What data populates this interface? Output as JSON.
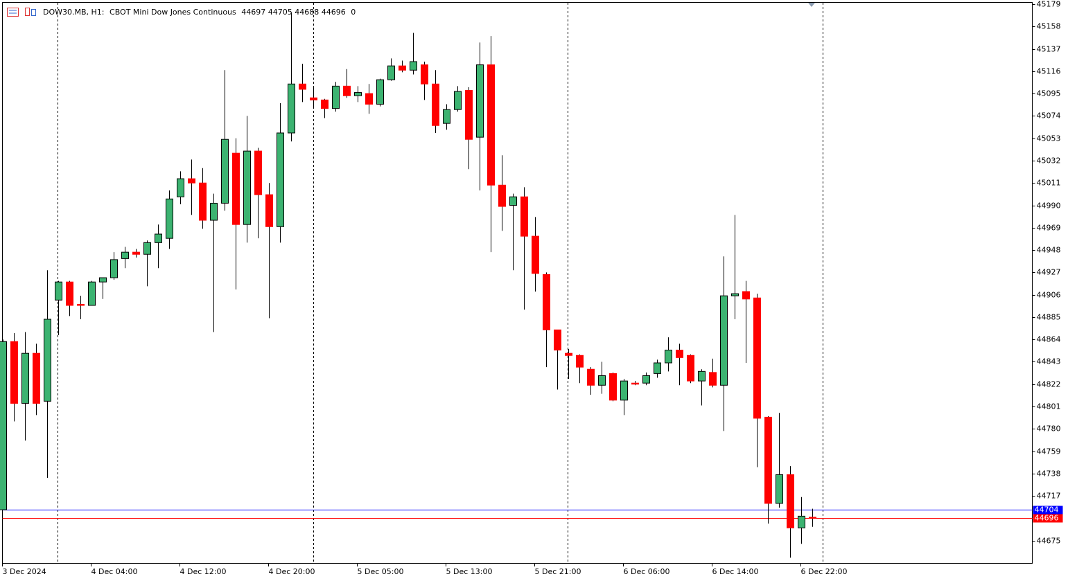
{
  "chart_data": {
    "type": "candlestick",
    "info": {
      "symbol": "DOW30.MB, H1:",
      "description": "CBOT Mini Dow Jones Continuous",
      "open": 44697,
      "high": 44705,
      "low": 44688,
      "close": 44696,
      "spread": 0
    },
    "categories": [
      "3 Dec 2024",
      null,
      null,
      null,
      null,
      null,
      null,
      null,
      "4 Dec 04:00",
      null,
      null,
      null,
      null,
      null,
      null,
      null,
      "4 Dec 12:00",
      null,
      null,
      null,
      null,
      null,
      null,
      null,
      "4 Dec 20:00",
      null,
      null,
      null,
      null,
      null,
      null,
      null,
      "5 Dec 05:00",
      null,
      null,
      null,
      null,
      null,
      null,
      null,
      "5 Dec 13:00",
      null,
      null,
      null,
      null,
      null,
      null,
      null,
      "5 Dec 21:00",
      null,
      null,
      null,
      null,
      null,
      null,
      null,
      "6 Dec 06:00",
      null,
      null,
      null,
      null,
      null,
      null,
      null,
      "6 Dec 14:00",
      null,
      null,
      null,
      null,
      null,
      null,
      null,
      "6 Dec 22:00",
      null
    ],
    "open": [
      44704,
      44862,
      44804,
      44851,
      44806,
      44901,
      44918,
      44897,
      44896,
      44918,
      44922,
      44940,
      44946,
      44944,
      44955,
      44959,
      44998,
      45015,
      45011,
      44976,
      44992,
      45039,
      44972,
      45041,
      45000,
      44970,
      45058,
      45104,
      45091,
      45089,
      45081,
      45102,
      45093,
      45095,
      45085,
      45108,
      45121,
      45117,
      45122,
      45104,
      45067,
      45080,
      45098,
      45054,
      45122,
      45009,
      44990,
      44998,
      44961,
      44925,
      44873,
      44851,
      44849,
      44836,
      44821,
      44832,
      44807,
      44823,
      44823,
      44832,
      44842,
      44854,
      44849,
      44825,
      44833,
      44821,
      44905,
      44909,
      44903,
      44791,
      44710,
      44737,
      44687,
      44697
    ],
    "high": [
      44864,
      44870,
      44871,
      44860,
      44929,
      44919,
      44919,
      44905,
      44919,
      44922,
      44946,
      44951,
      44949,
      44957,
      44972,
      45004,
      45022,
      45033,
      45025,
      45001,
      45117,
      45053,
      45074,
      45044,
      45011,
      45086,
      45171,
      45123,
      45102,
      45090,
      45106,
      45118,
      45102,
      45104,
      45109,
      45128,
      45126,
      45152,
      45125,
      45117,
      45085,
      45102,
      45101,
      45143,
      45149,
      45037,
      45001,
      45007,
      44979,
      44927,
      44873,
      44855,
      44850,
      44838,
      44843,
      44833,
      44827,
      44825,
      44833,
      44845,
      44866,
      44860,
      44850,
      44836,
      44846,
      44942,
      44981,
      44919,
      44907,
      44792,
      44795,
      44745,
      44716,
      44705
    ],
    "low": [
      44704,
      44787,
      44769,
      44793,
      44734,
      44868,
      44886,
      44883,
      44896,
      44902,
      44920,
      44931,
      44941,
      44914,
      44931,
      44949,
      44991,
      44981,
      44968,
      44871,
      44985,
      44911,
      44955,
      44959,
      44884,
      44955,
      45050,
      45087,
      45082,
      45072,
      45078,
      45091,
      45087,
      45076,
      45083,
      45107,
      45115,
      45113,
      45089,
      45058,
      45061,
      45078,
      45024,
      45004,
      44946,
      44966,
      44929,
      44892,
      44909,
      44838,
      44817,
      44827,
      44823,
      44812,
      44813,
      44806,
      44793,
      44821,
      44821,
      44828,
      44834,
      44821,
      44823,
      44802,
      44819,
      44778,
      44883,
      44842,
      44744,
      44691,
      44706,
      44659,
      44672,
      44688
    ],
    "close": [
      44862,
      44804,
      44851,
      44804,
      44883,
      44918,
      44896,
      44896,
      44918,
      44922,
      44939,
      44946,
      44944,
      44955,
      44963,
      44996,
      45015,
      45011,
      44976,
      44992,
      45052,
      44972,
      45041,
      45000,
      44970,
      45058,
      45104,
      45099,
      45089,
      45081,
      45102,
      45093,
      45096,
      45085,
      45108,
      45121,
      45117,
      45125,
      45104,
      45065,
      45080,
      45097,
      45052,
      45122,
      45009,
      44989,
      44998,
      44961,
      44926,
      44873,
      44854,
      44849,
      44838,
      44821,
      44830,
      44807,
      44825,
      44822,
      44830,
      44842,
      44854,
      44847,
      44825,
      44834,
      44821,
      44905,
      44907,
      44902,
      44790,
      44710,
      44737,
      44687,
      44698,
      44696
    ],
    "up_color": "#3cb371",
    "down_color": "#ff0000",
    "ylim": [
      44654,
      45179
    ],
    "yticks": [
      45179,
      45158,
      45137,
      45116,
      45095,
      45074,
      45053,
      45032,
      45011,
      44990,
      44969,
      44948,
      44927,
      44906,
      44885,
      44864,
      44843,
      44822,
      44801,
      44780,
      44759,
      44738,
      44717,
      44675
    ],
    "price_lines": [
      {
        "value": 44704,
        "color": "#0000ff"
      },
      {
        "value": 44696,
        "color": "#ff0000"
      }
    ]
  }
}
